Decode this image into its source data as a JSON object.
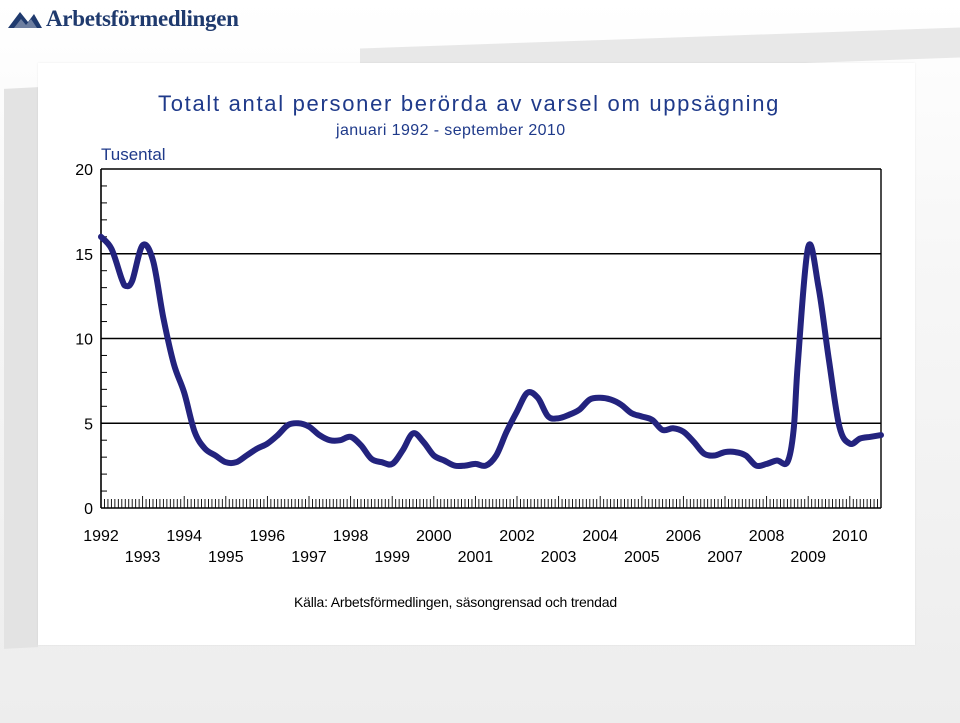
{
  "header": {
    "logo_text": "Arbetsförmedlingen",
    "logo_icon": "arbetsformedlingen-arrow-logo"
  },
  "colors": {
    "series": "#23237e",
    "text": "#1f3a8a",
    "axis": "#000000"
  },
  "chart_data": {
    "type": "line",
    "title": "Totalt antal personer berörda av varsel om uppsägning",
    "subtitle": "januari 1992 - september 2010",
    "ylabel": "Tusental",
    "source": "Källa: Arbetsförmedlingen, säsongrensad och trendad",
    "ylim": [
      0,
      20
    ],
    "xlim": [
      1992.0,
      2010.75
    ],
    "yticks": [
      0,
      5,
      10,
      15,
      20
    ],
    "xticks_top": [
      "1992",
      "1994",
      "1996",
      "1998",
      "2000",
      "2002",
      "2004",
      "2006",
      "2008",
      "2010"
    ],
    "xticks_bottom": [
      "1993",
      "1995",
      "1997",
      "1999",
      "2001",
      "2003",
      "2005",
      "2007",
      "2009"
    ],
    "grid": "horizontal",
    "series": [
      {
        "x": [
          1992.0,
          1992.25,
          1992.5,
          1992.6,
          1992.75,
          1993.0,
          1993.25,
          1993.5,
          1993.75,
          1994.0,
          1994.25,
          1994.5,
          1994.75,
          1995.0,
          1995.25,
          1995.5,
          1995.75,
          1996.0,
          1996.25,
          1996.5,
          1996.75,
          1997.0,
          1997.25,
          1997.5,
          1997.75,
          1998.0,
          1998.25,
          1998.5,
          1998.75,
          1999.0,
          1999.25,
          1999.5,
          1999.75,
          2000.0,
          2000.25,
          2000.5,
          2000.75,
          2001.0,
          2001.25,
          2001.5,
          2001.75,
          2002.0,
          2002.25,
          2002.5,
          2002.75,
          2003.0,
          2003.25,
          2003.5,
          2003.75,
          2004.0,
          2004.25,
          2004.5,
          2004.75,
          2005.0,
          2005.25,
          2005.5,
          2005.75,
          2006.0,
          2006.25,
          2006.5,
          2006.75,
          2007.0,
          2007.25,
          2007.5,
          2007.75,
          2008.0,
          2008.25,
          2008.5,
          2008.65,
          2008.75,
          2009.0,
          2009.25,
          2009.5,
          2009.75,
          2010.0,
          2010.25,
          2010.5,
          2010.75
        ],
        "y": [
          16.0,
          15.3,
          13.5,
          13.1,
          13.4,
          15.5,
          14.6,
          11.2,
          8.5,
          6.8,
          4.5,
          3.5,
          3.1,
          2.7,
          2.7,
          3.1,
          3.5,
          3.8,
          4.3,
          4.9,
          5.0,
          4.8,
          4.3,
          4.0,
          4.0,
          4.2,
          3.7,
          2.9,
          2.7,
          2.6,
          3.4,
          4.4,
          3.9,
          3.1,
          2.8,
          2.5,
          2.5,
          2.6,
          2.5,
          3.1,
          4.5,
          5.7,
          6.8,
          6.5,
          5.4,
          5.3,
          5.5,
          5.8,
          6.4,
          6.5,
          6.4,
          6.1,
          5.6,
          5.4,
          5.2,
          4.6,
          4.7,
          4.5,
          3.9,
          3.2,
          3.1,
          3.3,
          3.3,
          3.1,
          2.5,
          2.6,
          2.8,
          2.7,
          4.6,
          8.5,
          15.4,
          13.0,
          8.7,
          4.8,
          3.8,
          4.1,
          4.2,
          4.3
        ]
      }
    ]
  }
}
